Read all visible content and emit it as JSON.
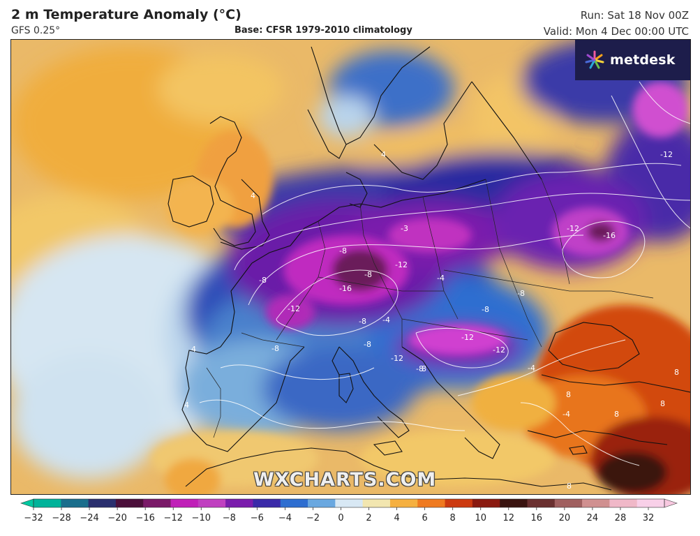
{
  "header": {
    "title": "2 m Temperature Anomaly (°C)",
    "model": "GFS 0.25°",
    "base": "Base: CFSR 1979-2010 climatology",
    "run": "Run: Sat 18 Nov 00Z",
    "valid": "Valid: Mon 4 Dec 00:00 UTC"
  },
  "logo": {
    "text": "metdesk",
    "icon": "starburst-icon"
  },
  "watermark": "WXCHARTS.COM",
  "colorbar": {
    "ticks": [
      "−32",
      "−28",
      "−24",
      "−20",
      "−16",
      "−12",
      "−10",
      "−8",
      "−6",
      "−4",
      "−2",
      "0",
      "2",
      "4",
      "6",
      "8",
      "10",
      "12",
      "16",
      "20",
      "24",
      "28",
      "32"
    ],
    "colors": [
      "#00b39a",
      "#1a6e8c",
      "#2a2f6e",
      "#4b0f3a",
      "#7a1a68",
      "#c020b8",
      "#c040c0",
      "#7a1cac",
      "#3a2aa8",
      "#2e6ed0",
      "#6aa8e0",
      "#d8e8f4",
      "#f2e6b0",
      "#f5b040",
      "#ef7a20",
      "#cc3a10",
      "#8a1a10",
      "#3a1410",
      "#6a3030",
      "#a06060",
      "#d09090",
      "#f0b8c8",
      "#f8d0e8"
    ],
    "left_color": "#00c8a0",
    "right_color": "#f8c8e0"
  },
  "contour_labels": [
    "-12",
    "4",
    "4",
    "-8",
    "-8",
    "-3",
    "-8",
    "-12",
    "-16",
    "-12",
    "-4",
    "-8",
    "-12",
    "-16",
    "-12",
    "-8",
    "4",
    "-4",
    "-8",
    "-8",
    "-8",
    "-12",
    "4",
    "-12",
    "8",
    "8",
    "8",
    "-4",
    "8",
    "8",
    "-8",
    "-4",
    "8"
  ]
}
